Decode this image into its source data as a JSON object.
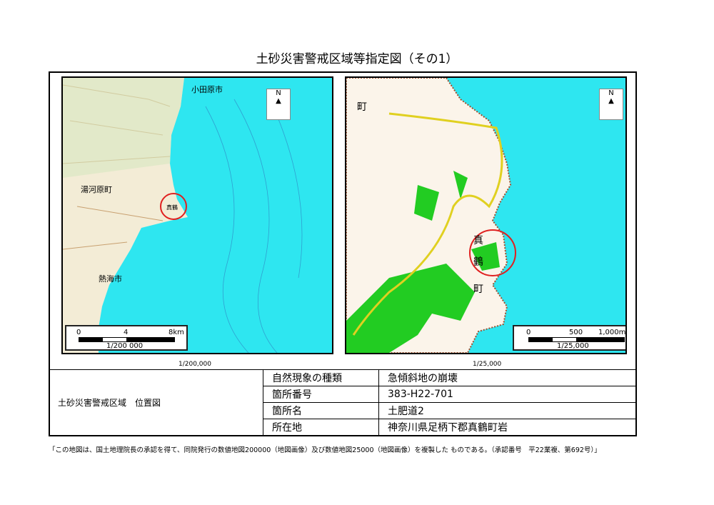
{
  "title": "土砂災害警戒区域等指定図（その1）",
  "maps": [
    {
      "scale_caption": "1/200,000",
      "scalebar": {
        "ticks": [
          "0",
          "4",
          "8km"
        ],
        "ratio": "1/200 000"
      },
      "north": "N",
      "labels": [
        "小田原市",
        "熱海市",
        "真鶴",
        "湯河原町"
      ]
    },
    {
      "scale_caption": "1/25,000",
      "scalebar": {
        "ticks": [
          "0",
          "500",
          "1,000m"
        ],
        "ratio": "1/25,000"
      },
      "north": "N",
      "labels": [
        "町",
        "真",
        "鶴",
        "町"
      ]
    }
  ],
  "colors": {
    "sea": "#2ee6f0",
    "land": "#fdf6e8",
    "forest": "#22cc22",
    "road": "#f0e040",
    "marker": "#e02020"
  },
  "table": {
    "left_label": "土砂災害警戒区域　位置図",
    "rows": [
      {
        "key": "自然現象の種類",
        "value": "急傾斜地の崩壊"
      },
      {
        "key": "箇所番号",
        "value": "383-H22-701"
      },
      {
        "key": "箇所名",
        "value": "土肥道2"
      },
      {
        "key": "所在地",
        "value": "神奈川県足柄下郡真鶴町岩"
      }
    ]
  },
  "footnote": "「この地図は、国土地理院長の承認を得て、同院発行の数値地図200000（地図画像）及び数値地図25000（地図画像）を複製した ものである。（承認番号　平22業複、第692号）」"
}
